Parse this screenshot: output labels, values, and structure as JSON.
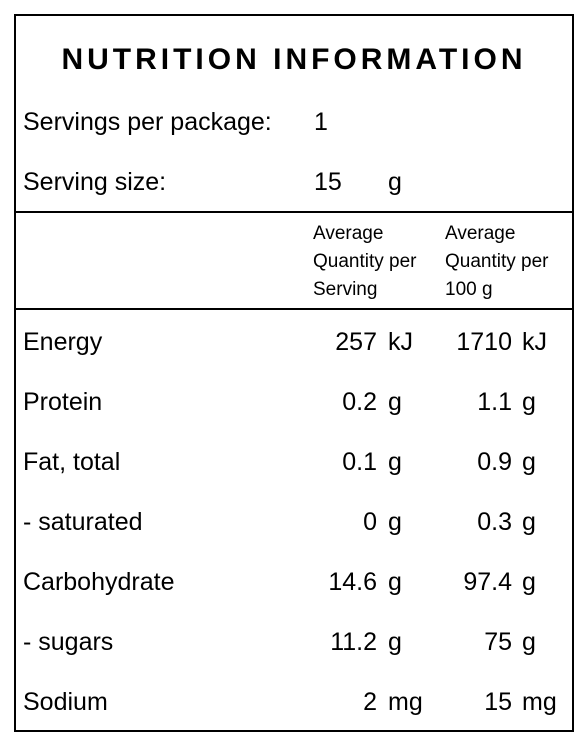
{
  "title": "NUTRITION INFORMATION",
  "servings": {
    "label": "Servings per package:",
    "value": 1
  },
  "serving_size": {
    "label": "Serving size:",
    "value": 15,
    "unit": "g"
  },
  "table": {
    "headers": [
      "Average Quantity per Serving",
      "Average Quantity per 100 g"
    ],
    "rows": [
      {
        "name": "Energy",
        "per_serving": 257,
        "serving_unit": "kJ",
        "per_100g": 1710,
        "unit_100g": "kJ"
      },
      {
        "name": "Protein",
        "per_serving": 0.2,
        "serving_unit": "g",
        "per_100g": 1.1,
        "unit_100g": "g"
      },
      {
        "name": "Fat, total",
        "per_serving": 0.1,
        "serving_unit": "g",
        "per_100g": 0.9,
        "unit_100g": "g"
      },
      {
        "name": "- saturated",
        "per_serving": 0,
        "serving_unit": "g",
        "per_100g": 0.3,
        "unit_100g": "g"
      },
      {
        "name": "Carbohydrate",
        "per_serving": 14.6,
        "serving_unit": "g",
        "per_100g": 97.4,
        "unit_100g": "g"
      },
      {
        "name": "- sugars",
        "per_serving": 11.2,
        "serving_unit": "g",
        "per_100g": 75,
        "unit_100g": "g"
      },
      {
        "name": "Sodium",
        "per_serving": 2,
        "serving_unit": "mg",
        "per_100g": 15,
        "unit_100g": "mg"
      }
    ]
  }
}
